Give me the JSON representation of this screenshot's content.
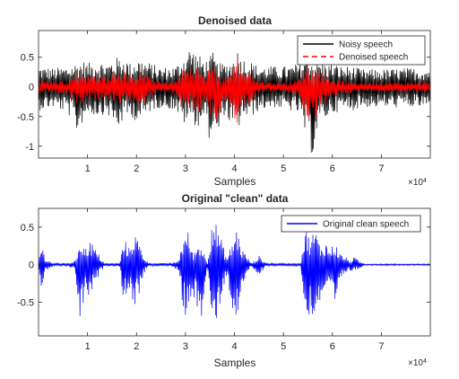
{
  "colors": {
    "noisy": "#000000",
    "denoised": "#ff0000",
    "clean": "#0000ff",
    "axis": "#262626",
    "background": "#ffffff"
  },
  "exponent": {
    "base": "×10",
    "power": "4"
  },
  "chart_data": [
    {
      "type": "line",
      "title": "Denoised data",
      "xlabel": "Samples",
      "ylabel": "",
      "xlim": [
        0,
        80000
      ],
      "ylim": [
        -1.2,
        0.95
      ],
      "x_ticks": [
        10000,
        20000,
        30000,
        40000,
        50000,
        60000,
        70000
      ],
      "x_tick_labels": [
        "1",
        "2",
        "3",
        "4",
        "5",
        "6",
        "7"
      ],
      "y_ticks": [
        -1,
        -0.5,
        0,
        0.5
      ],
      "y_tick_labels": [
        "-1",
        "-0.5",
        "0",
        "0.5"
      ],
      "grid": false,
      "legend_position": "top-right",
      "series": [
        {
          "name": "Noisy speech",
          "style": "solid",
          "color": "#000000",
          "envelope_x": [
            0,
            3000,
            6000,
            8000,
            9000,
            10000,
            12000,
            14000,
            16000,
            17500,
            19000,
            20000,
            21500,
            23000,
            25000,
            28000,
            29500,
            31000,
            32500,
            34000,
            35000,
            35500,
            36500,
            38000,
            39500,
            40500,
            41500,
            43000,
            45000,
            48000,
            51000,
            53000,
            55000,
            56000,
            57000,
            58500,
            60000,
            62000,
            64000,
            66000,
            70000,
            75000,
            80000
          ],
          "envelope_max": [
            0.35,
            0.32,
            0.35,
            0.42,
            0.45,
            0.4,
            0.45,
            0.4,
            0.5,
            0.5,
            0.38,
            0.5,
            0.45,
            0.4,
            0.33,
            0.35,
            0.5,
            0.7,
            0.55,
            0.45,
            0.5,
            0.6,
            0.4,
            0.4,
            0.45,
            0.65,
            0.5,
            0.45,
            0.35,
            0.35,
            0.35,
            0.4,
            0.55,
            0.45,
            0.45,
            0.4,
            0.4,
            0.35,
            0.35,
            0.3,
            0.3,
            0.32,
            0.32
          ],
          "envelope_min": [
            -0.4,
            -0.35,
            -0.45,
            -0.8,
            -0.6,
            -0.45,
            -0.5,
            -0.45,
            -0.75,
            -0.55,
            -0.5,
            -0.6,
            -0.55,
            -0.4,
            -0.35,
            -0.4,
            -0.65,
            -0.55,
            -0.7,
            -0.5,
            -0.95,
            -0.7,
            -0.95,
            -0.45,
            -0.7,
            -0.85,
            -0.5,
            -0.55,
            -0.4,
            -0.35,
            -0.4,
            -0.45,
            -0.95,
            -1.2,
            -0.7,
            -0.55,
            -0.45,
            -0.4,
            -0.4,
            -0.35,
            -0.35,
            -0.35,
            -0.35
          ]
        },
        {
          "name": "Denoised speech",
          "style": "dashed",
          "color": "#ff0000",
          "envelope_x": [
            0,
            3000,
            6000,
            8000,
            9000,
            10000,
            12000,
            14000,
            16000,
            17500,
            19000,
            20000,
            21500,
            23000,
            25000,
            28000,
            29500,
            31000,
            32500,
            34000,
            35000,
            35500,
            36500,
            38000,
            39500,
            40500,
            41500,
            43000,
            45000,
            48000,
            51000,
            53000,
            55000,
            56000,
            57000,
            58500,
            60000,
            62000,
            64000,
            66000,
            70000,
            75000,
            80000
          ],
          "envelope_max": [
            0.12,
            0.1,
            0.12,
            0.25,
            0.28,
            0.2,
            0.22,
            0.18,
            0.3,
            0.28,
            0.15,
            0.28,
            0.25,
            0.15,
            0.08,
            0.1,
            0.3,
            0.35,
            0.35,
            0.2,
            0.35,
            0.45,
            0.2,
            0.15,
            0.3,
            0.55,
            0.3,
            0.25,
            0.1,
            0.08,
            0.08,
            0.12,
            0.38,
            0.3,
            0.3,
            0.2,
            0.15,
            0.1,
            0.08,
            0.08,
            0.08,
            0.08,
            0.08
          ],
          "envelope_min": [
            -0.12,
            -0.1,
            -0.15,
            -0.3,
            -0.28,
            -0.2,
            -0.22,
            -0.18,
            -0.35,
            -0.3,
            -0.18,
            -0.32,
            -0.28,
            -0.15,
            -0.08,
            -0.12,
            -0.4,
            -0.3,
            -0.45,
            -0.25,
            -0.75,
            -0.5,
            -0.75,
            -0.18,
            -0.4,
            -0.7,
            -0.3,
            -0.3,
            -0.1,
            -0.08,
            -0.1,
            -0.15,
            -0.55,
            -0.8,
            -0.45,
            -0.28,
            -0.2,
            -0.12,
            -0.1,
            -0.08,
            -0.08,
            -0.08,
            -0.08
          ]
        }
      ]
    },
    {
      "type": "line",
      "title": "Original \"clean\" data",
      "xlabel": "Samples",
      "ylabel": "",
      "xlim": [
        0,
        80000
      ],
      "ylim": [
        -0.95,
        0.75
      ],
      "x_ticks": [
        10000,
        20000,
        30000,
        40000,
        50000,
        60000,
        70000
      ],
      "x_tick_labels": [
        "1",
        "2",
        "3",
        "4",
        "5",
        "6",
        "7"
      ],
      "y_ticks": [
        -0.5,
        0,
        0.5
      ],
      "y_tick_labels": [
        "-0.5",
        "0",
        "0.5"
      ],
      "grid": false,
      "legend_position": "top-right",
      "series": [
        {
          "name": "Original clean speech",
          "style": "solid",
          "color": "#0000ff",
          "envelope_x": [
            0,
            500,
            1500,
            3000,
            4500,
            6000,
            7500,
            8500,
            9500,
            10500,
            11500,
            12500,
            13500,
            15000,
            16500,
            17500,
            18500,
            19500,
            20500,
            21500,
            22500,
            23500,
            25000,
            27000,
            28500,
            29500,
            30500,
            31500,
            33000,
            34500,
            35500,
            36500,
            37500,
            38500,
            39500,
            40500,
            41500,
            42500,
            43500,
            45000,
            46500,
            48000,
            50000,
            52000,
            53500,
            54500,
            55500,
            56500,
            57500,
            58500,
            59500,
            60500,
            61500,
            62500,
            63500,
            64500,
            65500,
            66500,
            68000,
            72000,
            76000,
            80000
          ],
          "envelope_max": [
            0.02,
            0.3,
            0.08,
            0.02,
            0.02,
            0.02,
            0.05,
            0.4,
            0.2,
            0.35,
            0.22,
            0.12,
            0.02,
            0.02,
            0.02,
            0.35,
            0.22,
            0.45,
            0.3,
            0.12,
            0.02,
            0.02,
            0.02,
            0.02,
            0.05,
            0.35,
            0.45,
            0.15,
            0.32,
            0.02,
            0.72,
            0.5,
            0.3,
            0.08,
            0.3,
            0.5,
            0.22,
            0.12,
            0.02,
            0.12,
            0.02,
            0.02,
            0.02,
            0.02,
            0.02,
            0.5,
            0.35,
            0.5,
            0.25,
            0.32,
            0.2,
            0.32,
            0.15,
            0.12,
            0.05,
            0.1,
            0.05,
            0.01,
            0.01,
            0.01,
            0.01,
            0.01
          ],
          "envelope_min": [
            -0.02,
            -0.32,
            -0.1,
            -0.02,
            -0.02,
            -0.02,
            -0.08,
            -0.85,
            -0.4,
            -0.45,
            -0.3,
            -0.12,
            -0.02,
            -0.02,
            -0.02,
            -0.55,
            -0.3,
            -0.65,
            -0.4,
            -0.12,
            -0.02,
            -0.02,
            -0.02,
            -0.02,
            -0.08,
            -0.6,
            -0.8,
            -0.35,
            -0.9,
            -0.02,
            -0.95,
            -0.7,
            -0.4,
            -0.12,
            -0.6,
            -0.85,
            -0.35,
            -0.12,
            -0.02,
            -0.15,
            -0.02,
            -0.02,
            -0.02,
            -0.02,
            -0.02,
            -0.78,
            -0.65,
            -0.8,
            -0.5,
            -0.35,
            -0.4,
            -0.62,
            -0.3,
            -0.12,
            -0.08,
            -0.1,
            -0.05,
            -0.01,
            -0.01,
            -0.01,
            -0.01,
            -0.01
          ]
        }
      ]
    }
  ]
}
